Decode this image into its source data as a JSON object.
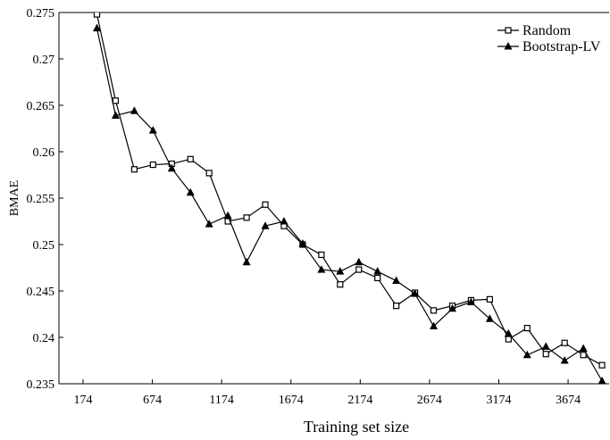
{
  "chart_data": {
    "type": "line",
    "x_label": "Training set size",
    "y_label": "BMAE",
    "x": [
      274,
      409,
      544,
      679,
      814,
      949,
      1084,
      1219,
      1354,
      1489,
      1624,
      1759,
      1894,
      2029,
      2164,
      2299,
      2434,
      2569,
      2704,
      2839,
      2974,
      3109,
      3244,
      3379,
      3514,
      3649,
      3784,
      3919
    ],
    "series": [
      {
        "name": "Random",
        "color": "#000000",
        "marker": "square",
        "values": [
          0.2748,
          0.2655,
          0.2581,
          0.2586,
          0.2587,
          0.2592,
          0.2577,
          0.2525,
          0.2529,
          0.2543,
          0.252,
          0.25,
          0.2489,
          0.2457,
          0.2473,
          0.2464,
          0.2434,
          0.2448,
          0.2429,
          0.2434,
          0.244,
          0.2441,
          0.2398,
          0.241,
          0.2382,
          0.2394,
          0.2381,
          0.237
        ]
      },
      {
        "name": "Bootstrap-LV",
        "color": "#000000",
        "marker": "triangle",
        "values": [
          0.2733,
          0.2639,
          0.2644,
          0.2623,
          0.2582,
          0.2556,
          0.2522,
          0.2531,
          0.2481,
          0.252,
          0.2525,
          0.2501,
          0.2473,
          0.2471,
          0.2481,
          0.2471,
          0.2461,
          0.2447,
          0.2412,
          0.2431,
          0.2438,
          0.242,
          0.2404,
          0.2381,
          0.239,
          0.2375,
          0.2388,
          0.2353
        ]
      }
    ],
    "xlim": [
      0,
      3970
    ],
    "xticks": [
      174,
      674,
      1174,
      1674,
      2174,
      2674,
      3174,
      3674
    ],
    "ylim": [
      0.235,
      0.275
    ],
    "yticks": [
      0.235,
      0.24,
      0.245,
      0.25,
      0.255,
      0.26,
      0.265,
      0.27,
      0.275
    ],
    "grid": false,
    "legend": "upper right"
  }
}
